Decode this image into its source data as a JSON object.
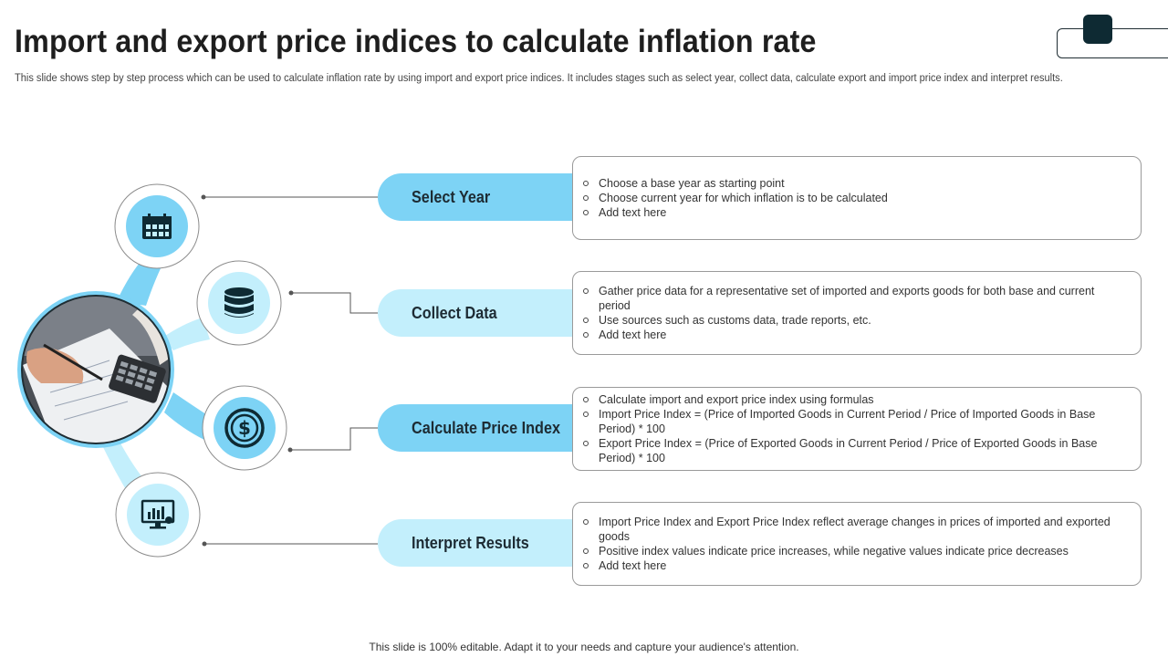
{
  "header": {
    "title": "Import and export price indices to calculate inflation rate",
    "subtitle": "This slide shows step by step process which can be used to calculate inflation rate by using import and export price indices. It includes stages such as select year, collect data, calculate export and import price index and interpret results."
  },
  "stages": [
    {
      "label": "Select Year",
      "icon": "calendar-icon",
      "points": [
        "Choose a base year as starting point",
        "Choose current year for which inflation is to be calculated",
        "Add text here"
      ]
    },
    {
      "label": "Collect Data",
      "icon": "database-icon",
      "points": [
        "Gather price data for a representative  set of imported and exports goods for both base and current period",
        "Use sources such as customs data, trade reports, etc.",
        "Add text here"
      ]
    },
    {
      "label": "Calculate Price Index",
      "icon": "dollar-coin-icon",
      "points": [
        "Calculate import and export price index using formulas",
        "Import Price Index = (Price of Imported Goods in Current Period / Price of Imported Goods in Base Period) * 100",
        "Export Price Index = (Price of Exported Goods in Current Period / Price of Exported Goods in Base Period) * 100"
      ]
    },
    {
      "label": "Interpret Results",
      "icon": "monitor-chart-icon",
      "points": [
        "Import Price Index and Export Price Index reflect average  changes in prices of imported and exported goods",
        "Positive index values indicate price increases, while negative values indicate price decreases",
        "Add text here"
      ]
    }
  ],
  "footer": "This slide is 100% editable. Adapt it to your needs and capture your audience's attention.",
  "colors": {
    "accent_dark": "#7dd3f5",
    "accent_light": "#c3effc",
    "icon_dark": "#0e2a33"
  }
}
